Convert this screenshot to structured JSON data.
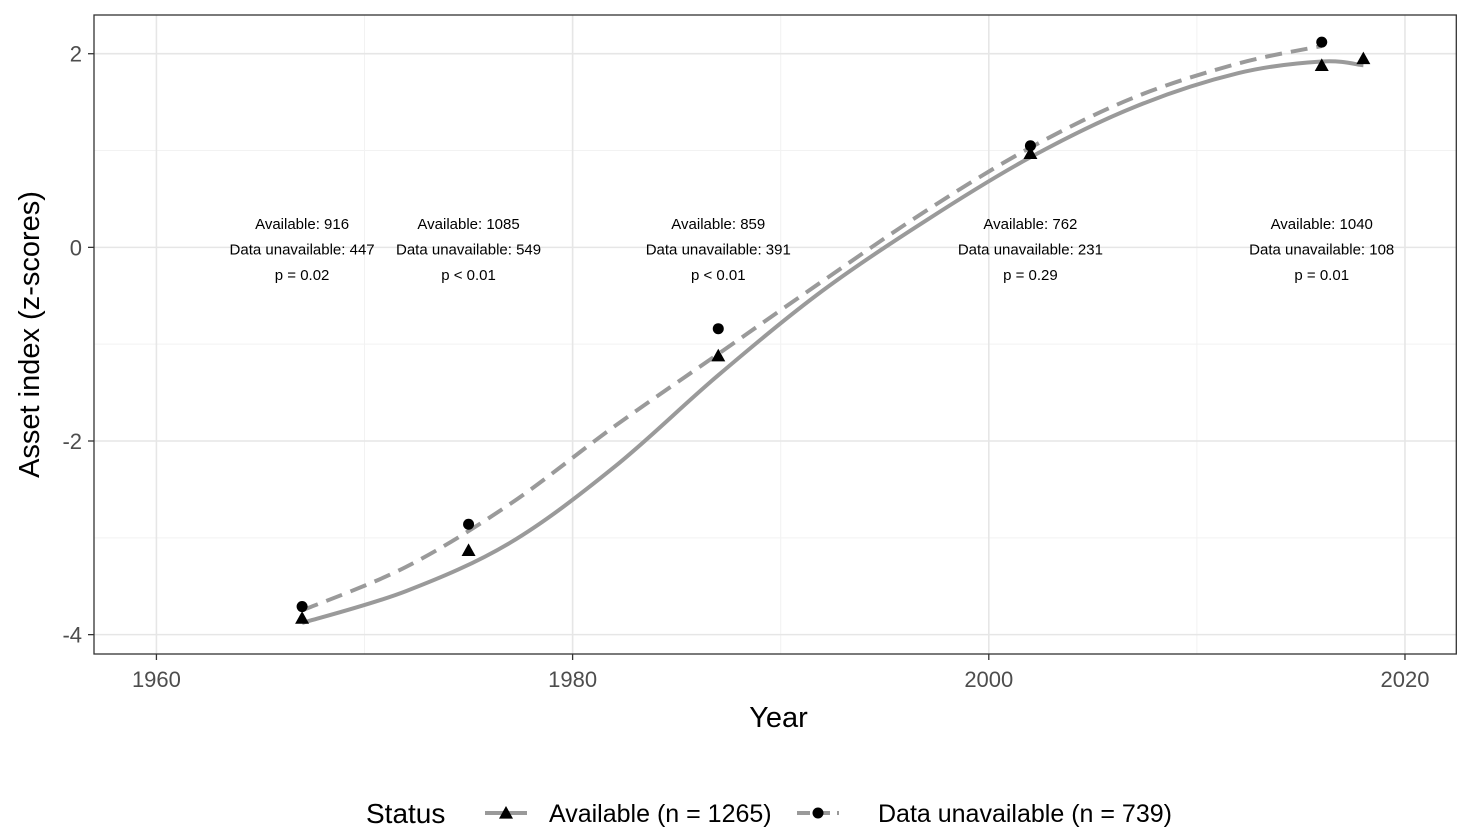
{
  "chart_data": {
    "type": "line",
    "xlabel": "Year",
    "ylabel": "Asset index (z-scores)",
    "xlim": [
      1957,
      2022.5
    ],
    "ylim": [
      -4.2,
      2.4
    ],
    "x_ticks": [
      1960,
      1980,
      2000,
      2020
    ],
    "y_ticks": [
      -4,
      -2,
      0,
      2
    ],
    "grid": true,
    "legend": {
      "title": "Status",
      "position": "bottom",
      "entries": [
        {
          "label": "Available (n = 1265)",
          "marker": "triangle",
          "line": "solid"
        },
        {
          "label": "Data unavailable (n = 739)",
          "marker": "circle",
          "line": "dashed"
        }
      ]
    },
    "series": [
      {
        "name": "Available (n = 1265)",
        "marker": "triangle",
        "line": "solid",
        "color": "#9a9a9a",
        "points": [
          [
            1967,
            -3.83
          ],
          [
            1975,
            -3.13
          ],
          [
            1987,
            -1.12
          ],
          [
            2002,
            0.97
          ],
          [
            2016,
            1.88
          ],
          [
            2018,
            1.95
          ]
        ],
        "fit": [
          [
            1967,
            -3.88
          ],
          [
            1972,
            -3.55
          ],
          [
            1977,
            -3.05
          ],
          [
            1982,
            -2.27
          ],
          [
            1987,
            -1.32
          ],
          [
            1992,
            -0.45
          ],
          [
            1997,
            0.28
          ],
          [
            2002,
            0.93
          ],
          [
            2007,
            1.45
          ],
          [
            2012,
            1.8
          ],
          [
            2016,
            1.92
          ],
          [
            2018,
            1.88
          ]
        ]
      },
      {
        "name": "Data unavailable (n = 739)",
        "marker": "circle",
        "line": "dashed",
        "color": "#9a9a9a",
        "points": [
          [
            1967,
            -3.71
          ],
          [
            1975,
            -2.86
          ],
          [
            1987,
            -0.84
          ],
          [
            2002,
            1.05
          ],
          [
            2016,
            2.12
          ]
        ],
        "fit": [
          [
            1967,
            -3.75
          ],
          [
            1972,
            -3.3
          ],
          [
            1977,
            -2.65
          ],
          [
            1982,
            -1.85
          ],
          [
            1987,
            -1.1
          ],
          [
            1992,
            -0.35
          ],
          [
            1997,
            0.38
          ],
          [
            2002,
            1.03
          ],
          [
            2007,
            1.55
          ],
          [
            2012,
            1.9
          ],
          [
            2016,
            2.08
          ]
        ]
      }
    ],
    "annotations": [
      {
        "x": 1967,
        "lines": [
          "Available: 916",
          "Data unavailable: 447",
          "p = 0.02"
        ]
      },
      {
        "x": 1975,
        "lines": [
          "Available: 1085",
          "Data unavailable: 549",
          "p < 0.01"
        ]
      },
      {
        "x": 1987,
        "lines": [
          "Available: 859",
          "Data unavailable: 391",
          "p < 0.01"
        ]
      },
      {
        "x": 2002,
        "lines": [
          "Available: 762",
          "Data unavailable: 231",
          "p = 0.29"
        ]
      },
      {
        "x": 2016,
        "lines": [
          "Available: 1040",
          "Data unavailable: 108",
          "p = 0.01"
        ]
      }
    ]
  }
}
